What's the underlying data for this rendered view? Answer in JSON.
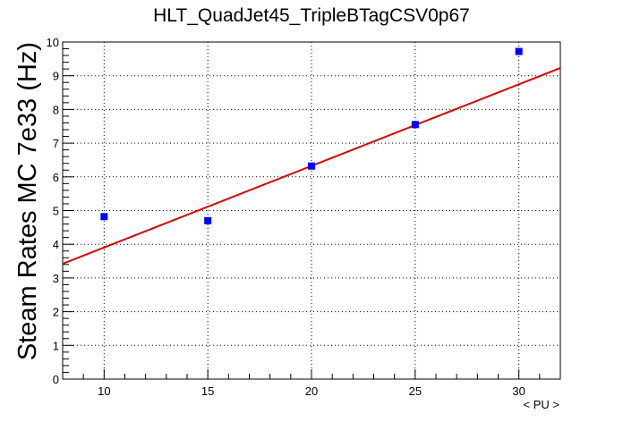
{
  "chart_data": {
    "type": "scatter",
    "title": "HLT_QuadJet45_TripleBTagCSV0p67",
    "xlabel": "< PU >",
    "ylabel": "Steam Rates MC 7e33 (Hz)",
    "xlim": [
      8,
      32
    ],
    "ylim": [
      0,
      10
    ],
    "x_ticks": [
      10,
      15,
      20,
      25,
      30
    ],
    "y_ticks": [
      0,
      1,
      2,
      3,
      4,
      5,
      6,
      7,
      8,
      9,
      10
    ],
    "grid": true,
    "series": [
      {
        "type": "scatter",
        "color": "#0000ff",
        "x": [
          10,
          15,
          20,
          25,
          30
        ],
        "y": [
          4.82,
          4.7,
          6.32,
          7.55,
          9.72
        ]
      },
      {
        "type": "line",
        "color": "#dd0000",
        "x": [
          8,
          32
        ],
        "y": [
          3.42,
          9.23
        ]
      }
    ]
  }
}
